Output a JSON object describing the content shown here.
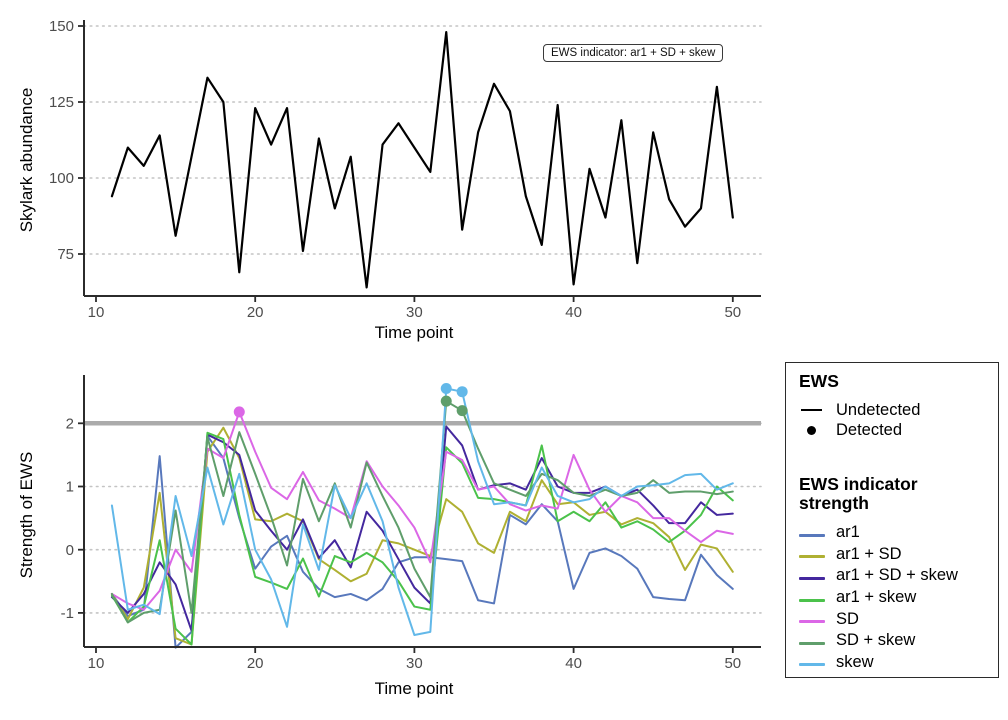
{
  "annotation": {
    "label": "EWS indicator: ar1 + SD + skew"
  },
  "colors": {
    "threshold": "#ABABAB",
    "grid": "#C4C4C4",
    "axis_line": "#2b2b2b",
    "tick_label": "#4D4D4D",
    "top_series": "#000000"
  },
  "legend": {
    "ews": {
      "title": "EWS",
      "items": [
        {
          "label": "Undetected",
          "marker": "line"
        },
        {
          "label": "Detected",
          "marker": "point"
        }
      ]
    },
    "indicator": {
      "title": "EWS indicator strength",
      "items": [
        {
          "label": "ar1",
          "color": "#5878BC"
        },
        {
          "label": "ar1 + SD",
          "color": "#AFB032"
        },
        {
          "label": "ar1 + SD + skew",
          "color": "#44289E"
        },
        {
          "label": "ar1 + skew",
          "color": "#4BC24B"
        },
        {
          "label": "SD",
          "color": "#DB67E6"
        },
        {
          "label": "SD + skew",
          "color": "#5F9E6B"
        },
        {
          "label": "skew",
          "color": "#62B8E9"
        }
      ]
    }
  },
  "chart_data": [
    {
      "type": "line",
      "title": "",
      "xlabel": "Time point",
      "ylabel": "Skylark abundance",
      "x": [
        11,
        12,
        13,
        14,
        15,
        16,
        17,
        18,
        19,
        20,
        21,
        22,
        23,
        24,
        25,
        26,
        27,
        28,
        29,
        30,
        31,
        32,
        33,
        34,
        35,
        36,
        37,
        38,
        39,
        40,
        41,
        42,
        43,
        44,
        45,
        46,
        47,
        48,
        49,
        50
      ],
      "values": [
        94,
        110,
        104,
        114,
        81,
        107,
        133,
        125,
        69,
        123,
        111,
        123,
        76,
        113,
        90,
        107,
        64,
        111,
        118,
        110,
        102,
        148,
        83,
        115,
        131,
        122,
        94,
        78,
        124,
        65,
        103,
        87,
        119,
        72,
        115,
        93,
        84,
        90,
        130,
        87
      ],
      "xticks": [
        10,
        20,
        30,
        40,
        50
      ],
      "yticks": [
        75,
        100,
        125,
        150
      ],
      "xlim": [
        9.2,
        51.8
      ],
      "ylim": [
        61,
        152
      ],
      "grid": "horizontal-dotted",
      "line_color": "#000000",
      "annotation": "EWS indicator: ar1 + SD + skew"
    },
    {
      "type": "line",
      "title": "",
      "xlabel": "Time point",
      "ylabel": "Strength of EWS",
      "x": [
        11,
        12,
        13,
        14,
        15,
        16,
        17,
        18,
        19,
        20,
        21,
        22,
        23,
        24,
        25,
        26,
        27,
        28,
        29,
        30,
        31,
        32,
        33,
        34,
        35,
        36,
        37,
        38,
        39,
        40,
        41,
        42,
        43,
        44,
        45,
        46,
        47,
        48,
        49,
        50
      ],
      "series": [
        {
          "name": "ar1",
          "color": "#5878BC",
          "values": [
            -0.7,
            -1.05,
            -0.95,
            1.48,
            -1.55,
            -1.3,
            1.8,
            1.45,
            0.5,
            -0.3,
            0.05,
            0.22,
            -0.35,
            -0.62,
            -0.75,
            -0.7,
            -0.8,
            -0.62,
            -0.2,
            -0.12,
            -0.12,
            -0.15,
            -0.18,
            -0.8,
            -0.85,
            0.55,
            0.4,
            0.72,
            0.45,
            -0.62,
            -0.05,
            0.02,
            -0.1,
            -0.3,
            -0.75,
            -0.78,
            -0.8,
            -0.08,
            -0.4,
            -0.62
          ]
        },
        {
          "name": "ar1 + SD",
          "color": "#AFB032",
          "values": [
            -0.7,
            -1.1,
            -0.6,
            0.9,
            -1.4,
            -1.5,
            1.55,
            1.93,
            1.45,
            0.48,
            0.45,
            0.57,
            0.45,
            -0.15,
            -0.32,
            -0.5,
            -0.38,
            0.15,
            0.1,
            0,
            -0.1,
            0.8,
            0.6,
            0.1,
            -0.05,
            0.6,
            0.45,
            1.1,
            0.72,
            0.75,
            0.55,
            0.6,
            0.4,
            0.5,
            0.42,
            0.2,
            -0.32,
            0.08,
            0.02,
            -0.35
          ]
        },
        {
          "name": "ar1 + SD + skew",
          "color": "#44289E",
          "values": [
            -0.75,
            -1.0,
            -0.7,
            -0.2,
            -0.55,
            -1.28,
            1.82,
            1.7,
            1.5,
            0.62,
            0.3,
            0,
            0.48,
            -0.13,
            0.15,
            -0.28,
            0.6,
            0.3,
            -0.15,
            -0.6,
            -0.85,
            1.95,
            1.65,
            0.95,
            1.02,
            1.05,
            0.95,
            1.45,
            1.0,
            0.9,
            0.9,
            1.0,
            0.85,
            0.95,
            0.7,
            0.42,
            0.42,
            0.75,
            0.55,
            0.57
          ]
        },
        {
          "name": "ar1 + skew",
          "color": "#4BC24B",
          "values": [
            -0.72,
            -1.15,
            -0.9,
            0.15,
            -1.25,
            -1.5,
            1.85,
            1.75,
            0.55,
            -0.43,
            -0.52,
            -0.62,
            -0.14,
            -0.74,
            -0.1,
            -0.2,
            -0.05,
            -0.2,
            -0.5,
            -0.9,
            -0.95,
            1.62,
            1.37,
            0.82,
            0.8,
            0.75,
            0.7,
            1.65,
            0.45,
            0.6,
            0.45,
            0.75,
            0.35,
            0.45,
            0.32,
            0.12,
            0.3,
            0.55,
            1.0,
            0.78
          ]
        },
        {
          "name": "SD",
          "color": "#DB67E6",
          "values": [
            -0.7,
            -0.85,
            -0.95,
            -0.65,
            0,
            -0.35,
            1.6,
            1.45,
            2.18,
            1.55,
            0.98,
            0.8,
            1.23,
            0.78,
            0.65,
            0.5,
            1.4,
            1.0,
            0.7,
            0.35,
            -0.2,
            1.55,
            1.42,
            0.95,
            1.0,
            0.72,
            0.62,
            0.7,
            0.65,
            1.5,
            0.95,
            0.6,
            0.85,
            0.75,
            0.5,
            0.5,
            0.3,
            0.12,
            0.3,
            0.25
          ]
        },
        {
          "name": "SD + skew",
          "color": "#5F9E6B",
          "values": [
            -0.7,
            -1.15,
            -1.0,
            -0.95,
            0.62,
            -1.0,
            1.78,
            0.85,
            1.86,
            1.2,
            0.52,
            -0.25,
            1.12,
            0.45,
            1.05,
            0.35,
            1.38,
            0.85,
            0.35,
            -0.3,
            -0.75,
            2.35,
            2.2,
            1.6,
            1.05,
            0.95,
            0.85,
            1.2,
            1.1,
            0.9,
            0.85,
            0.95,
            0.85,
            0.9,
            1.1,
            0.9,
            0.92,
            0.92,
            0.88,
            0.92
          ]
        },
        {
          "name": "skew",
          "color": "#62B8E9",
          "values": [
            0.7,
            -0.95,
            -0.87,
            -1.02,
            0.85,
            -0.1,
            1.3,
            0.4,
            1.2,
            0,
            -0.47,
            -1.22,
            0.4,
            -0.32,
            1.02,
            0.5,
            1.05,
            0.45,
            -0.6,
            -1.35,
            -1.3,
            2.55,
            2.5,
            1.4,
            0.72,
            0.75,
            0.7,
            1.3,
            0.85,
            0.75,
            0.8,
            1.0,
            0.85,
            1.0,
            1.02,
            1.05,
            1.18,
            1.2,
            0.95,
            1.05
          ]
        }
      ],
      "threshold": {
        "y": 2,
        "color": "#ABABAB"
      },
      "detected_points": [
        {
          "series": "SD",
          "x": 19,
          "y": 2.18
        },
        {
          "series": "SD + skew",
          "x": 32,
          "y": 2.35
        },
        {
          "series": "SD + skew",
          "x": 33,
          "y": 2.2
        },
        {
          "series": "skew",
          "x": 32,
          "y": 2.55
        },
        {
          "series": "skew",
          "x": 33,
          "y": 2.5
        }
      ],
      "xticks": [
        10,
        20,
        30,
        40,
        50
      ],
      "yticks": [
        -1,
        0,
        1,
        2
      ],
      "xlim": [
        9.2,
        51.8
      ],
      "ylim": [
        -1.54,
        2.76
      ],
      "grid": "horizontal-dotted",
      "legend_position": "right"
    }
  ]
}
